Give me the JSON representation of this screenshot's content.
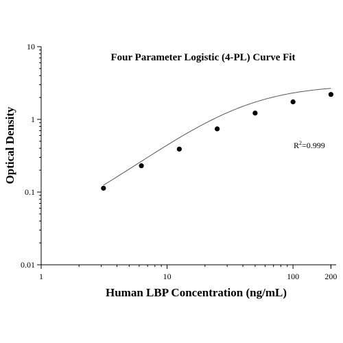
{
  "chart_data": {
    "type": "scatter",
    "title": "Four Parameter Logistic (4-PL) Curve Fit",
    "xlabel": "Human LBP Concentration (ng/mL)",
    "ylabel": "Optical Density",
    "x_scale": "log",
    "y_scale": "log",
    "xlim": [
      1,
      220
    ],
    "ylim": [
      0.01,
      10
    ],
    "x_ticks": [
      {
        "value": 1,
        "label": "1"
      },
      {
        "value": 10,
        "label": "10"
      },
      {
        "value": 100,
        "label": "100"
      },
      {
        "value": 200,
        "label": "200"
      }
    ],
    "y_ticks": [
      {
        "value": 0.01,
        "label": "0.01"
      },
      {
        "value": 0.1,
        "label": "0.1"
      },
      {
        "value": 1,
        "label": "1"
      },
      {
        "value": 10,
        "label": "10"
      }
    ],
    "grid": false,
    "legend": "none",
    "annotation": {
      "r2_prefix": "R",
      "r2_sup": "2",
      "r2_value": "=0.999"
    },
    "series": [
      {
        "points": [
          {
            "x": 3.125,
            "y": 0.113
          },
          {
            "x": 6.25,
            "y": 0.23
          },
          {
            "x": 12.5,
            "y": 0.39
          },
          {
            "x": 25,
            "y": 0.74
          },
          {
            "x": 50,
            "y": 1.22
          },
          {
            "x": 100,
            "y": 1.74
          },
          {
            "x": 200,
            "y": 2.2
          }
        ]
      }
    ],
    "fit": {
      "a": 0.02,
      "b": 1.3,
      "c": 40,
      "d": 3.0
    },
    "colors": {
      "points": "#000000",
      "curve": "#555555",
      "axes": "#000000"
    }
  }
}
